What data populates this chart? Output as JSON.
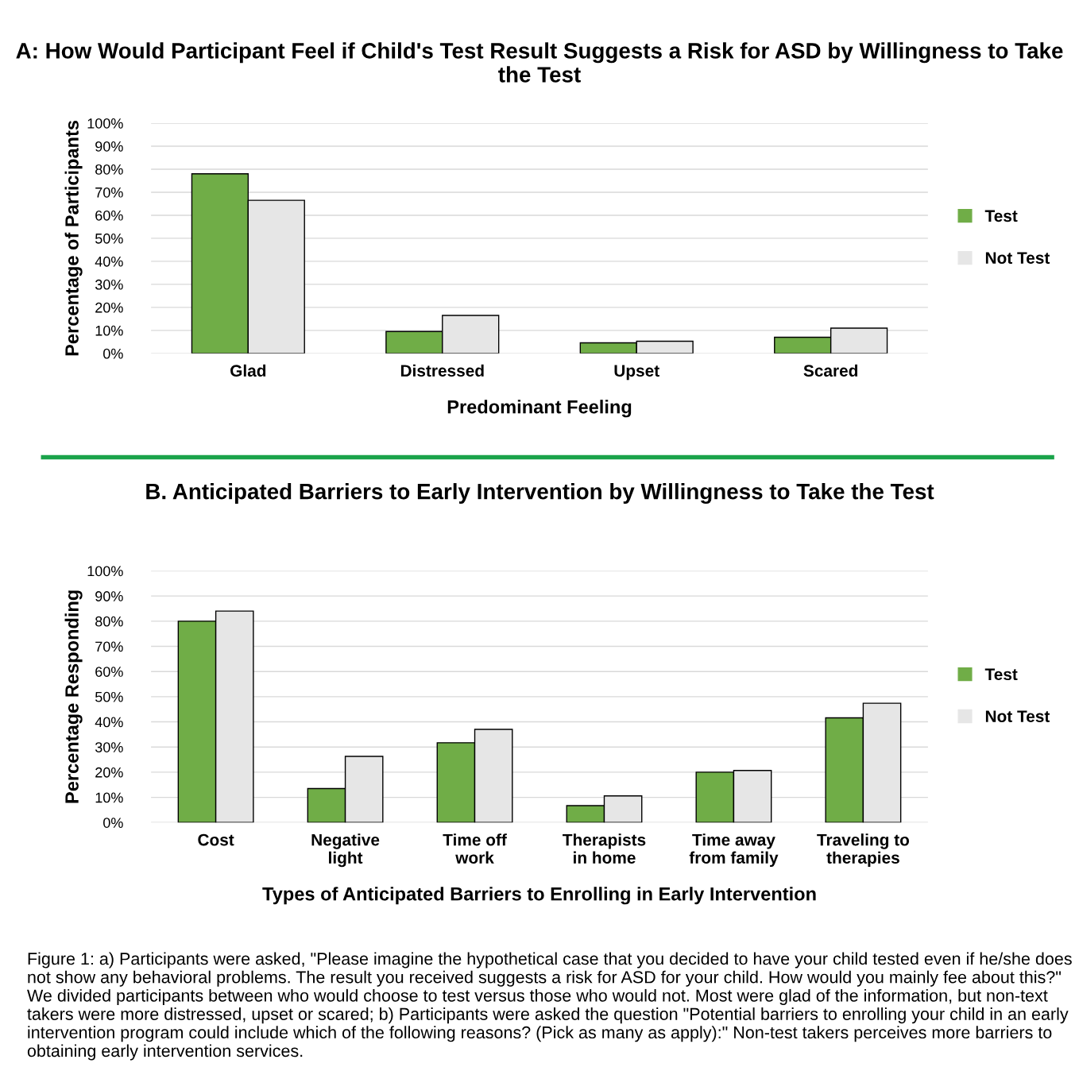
{
  "chart_data": [
    {
      "type": "bar",
      "title": "A: How Would Participant Feel if Child's Test Result Suggests a Risk for ASD by Willingness to Take the Test",
      "xlabel": "Predominant Feeling",
      "ylabel": "Percentage of Participants",
      "categories": [
        "Glad",
        "Distressed",
        "Upset",
        "Scared"
      ],
      "series": [
        {
          "name": "Test",
          "color": "#70ad47",
          "values": [
            78,
            9.5,
            4.6,
            7
          ]
        },
        {
          "name": "Not Test",
          "color": "#e6e6e6",
          "values": [
            66.5,
            16.5,
            5.3,
            11
          ]
        }
      ],
      "ylim": [
        0,
        100
      ],
      "yticks": [
        {
          "value": 0,
          "label": "0%"
        },
        {
          "value": 10,
          "label": "10%"
        },
        {
          "value": 20,
          "label": "20%"
        },
        {
          "value": 30,
          "label": "30%"
        },
        {
          "value": 40,
          "label": "40%"
        },
        {
          "value": 50,
          "label": "50%"
        },
        {
          "value": 60,
          "label": "60%"
        },
        {
          "value": 70,
          "label": "70%"
        },
        {
          "value": 80,
          "label": "80%"
        },
        {
          "value": 90,
          "label": "90%"
        },
        {
          "value": 100,
          "label": "100%"
        }
      ],
      "grid": "y",
      "legend": "right"
    },
    {
      "type": "bar",
      "title": "B. Anticipated Barriers to Early Intervention by Willingness to Take the Test",
      "xlabel": "Types of Anticipated Barriers to Enrolling in Early Intervention",
      "ylabel": "Percentage Responding",
      "categories": [
        "Cost",
        "Negative\nlight",
        "Time off\nwork",
        "Therapists\nin home",
        "Time away\nfrom family",
        "Traveling to\ntherapies"
      ],
      "series": [
        {
          "name": "Test",
          "color": "#70ad47",
          "values": [
            80,
            13.5,
            31.7,
            6.7,
            20,
            41.6
          ]
        },
        {
          "name": "Not Test",
          "color": "#e6e6e6",
          "values": [
            84,
            26.3,
            37,
            10.6,
            20.7,
            47.4
          ]
        }
      ],
      "ylim": [
        0,
        100
      ],
      "yticks": [
        {
          "value": 0,
          "label": "0%"
        },
        {
          "value": 10,
          "label": "10%"
        },
        {
          "value": 20,
          "label": "20%"
        },
        {
          "value": 30,
          "label": "30%"
        },
        {
          "value": 40,
          "label": "40%"
        },
        {
          "value": 50,
          "label": "50%"
        },
        {
          "value": 60,
          "label": "60%"
        },
        {
          "value": 70,
          "label": "70%"
        },
        {
          "value": 80,
          "label": "80%"
        },
        {
          "value": 90,
          "label": "90%"
        },
        {
          "value": 100,
          "label": "100%"
        }
      ],
      "grid": "y",
      "legend": "right",
      "annotations": [
        "Figure 1: a) Participants were asked, \"Please imagine the hypothetical case that you decided to have your child tested even if he/she does not show any behavioral problems. The result you received suggests a risk for ASD for your child. How would you mainly fee about this?\" We divided participants between who would choose to test versus those who would not. Most were glad of the information, but non-text takers were more distressed, upset or scared; b) Participants were asked the question \"Potential barriers to enrolling your child in an early intervention program could include which of the following reasons? (Pick as many as apply):\" Non-test takers perceives more barriers to obtaining early intervention services."
      ]
    }
  ]
}
